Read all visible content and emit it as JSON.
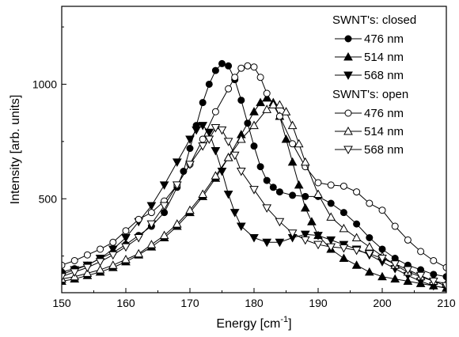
{
  "chart_data": {
    "type": "line",
    "xlabel": "Energy [cm",
    "xlabel_sup": "-1",
    "xlabel_end": "]",
    "ylabel": "Intensity [arb. units]",
    "xlim": [
      150,
      210
    ],
    "ylim": [
      90,
      1340
    ],
    "x_ticks": [
      150,
      160,
      170,
      180,
      190,
      200,
      210
    ],
    "y_ticks": [
      500,
      1000
    ],
    "legend_position": "top-right",
    "legend_groups": [
      {
        "heading": "SWNT's: closed",
        "series_indices": [
          0,
          1,
          2
        ]
      },
      {
        "heading": "SWNT's: open",
        "series_indices": [
          3,
          4,
          5
        ]
      }
    ],
    "series": [
      {
        "name": "476 nm",
        "marker": "circle",
        "filled": true,
        "points": [
          [
            150,
            180
          ],
          [
            152,
            195
          ],
          [
            154,
            210
          ],
          [
            156,
            240
          ],
          [
            158,
            265
          ],
          [
            160,
            300
          ],
          [
            162,
            340
          ],
          [
            164,
            380
          ],
          [
            166,
            440
          ],
          [
            168,
            550
          ],
          [
            169,
            620
          ],
          [
            170,
            720
          ],
          [
            171,
            820
          ],
          [
            172,
            920
          ],
          [
            173,
            1000
          ],
          [
            174,
            1060
          ],
          [
            175,
            1090
          ],
          [
            176,
            1080
          ],
          [
            177,
            1020
          ],
          [
            178,
            930
          ],
          [
            179,
            830
          ],
          [
            180,
            730
          ],
          [
            181,
            640
          ],
          [
            182,
            580
          ],
          [
            183,
            550
          ],
          [
            184,
            530
          ],
          [
            186,
            515
          ],
          [
            188,
            510
          ],
          [
            190,
            510
          ],
          [
            192,
            480
          ],
          [
            194,
            440
          ],
          [
            196,
            390
          ],
          [
            198,
            330
          ],
          [
            200,
            280
          ],
          [
            202,
            240
          ],
          [
            204,
            210
          ],
          [
            206,
            190
          ],
          [
            208,
            170
          ],
          [
            210,
            160
          ]
        ]
      },
      {
        "name": "514 nm",
        "marker": "triangle-up",
        "filled": true,
        "points": [
          [
            150,
            140
          ],
          [
            152,
            150
          ],
          [
            154,
            165
          ],
          [
            156,
            180
          ],
          [
            158,
            200
          ],
          [
            160,
            225
          ],
          [
            162,
            255
          ],
          [
            164,
            290
          ],
          [
            166,
            330
          ],
          [
            168,
            380
          ],
          [
            170,
            440
          ],
          [
            172,
            510
          ],
          [
            174,
            590
          ],
          [
            176,
            680
          ],
          [
            178,
            780
          ],
          [
            180,
            880
          ],
          [
            181,
            920
          ],
          [
            182,
            940
          ],
          [
            183,
            920
          ],
          [
            184,
            860
          ],
          [
            185,
            760
          ],
          [
            186,
            660
          ],
          [
            187,
            560
          ],
          [
            188,
            460
          ],
          [
            189,
            400
          ],
          [
            190,
            340
          ],
          [
            192,
            280
          ],
          [
            194,
            240
          ],
          [
            196,
            210
          ],
          [
            198,
            180
          ],
          [
            200,
            160
          ],
          [
            202,
            150
          ],
          [
            204,
            140
          ],
          [
            206,
            130
          ],
          [
            208,
            120
          ],
          [
            210,
            110
          ]
        ]
      },
      {
        "name": "568 nm",
        "marker": "triangle-down",
        "filled": true,
        "points": [
          [
            150,
            170
          ],
          [
            152,
            190
          ],
          [
            154,
            210
          ],
          [
            156,
            240
          ],
          [
            158,
            280
          ],
          [
            160,
            330
          ],
          [
            162,
            400
          ],
          [
            164,
            470
          ],
          [
            166,
            560
          ],
          [
            168,
            660
          ],
          [
            170,
            760
          ],
          [
            171,
            800
          ],
          [
            172,
            820
          ],
          [
            173,
            790
          ],
          [
            174,
            710
          ],
          [
            175,
            620
          ],
          [
            176,
            520
          ],
          [
            177,
            440
          ],
          [
            178,
            380
          ],
          [
            180,
            330
          ],
          [
            182,
            310
          ],
          [
            184,
            310
          ],
          [
            186,
            330
          ],
          [
            188,
            345
          ],
          [
            190,
            340
          ],
          [
            192,
            320
          ],
          [
            194,
            300
          ],
          [
            196,
            280
          ],
          [
            198,
            255
          ],
          [
            200,
            225
          ],
          [
            202,
            195
          ],
          [
            204,
            165
          ],
          [
            206,
            140
          ],
          [
            208,
            120
          ],
          [
            210,
            110
          ]
        ]
      },
      {
        "name": "476 nm",
        "marker": "circle",
        "filled": false,
        "points": [
          [
            150,
            210
          ],
          [
            152,
            230
          ],
          [
            154,
            255
          ],
          [
            156,
            280
          ],
          [
            158,
            310
          ],
          [
            160,
            360
          ],
          [
            162,
            410
          ],
          [
            164,
            440
          ],
          [
            166,
            490
          ],
          [
            168,
            560
          ],
          [
            170,
            650
          ],
          [
            172,
            760
          ],
          [
            174,
            880
          ],
          [
            176,
            980
          ],
          [
            177,
            1030
          ],
          [
            178,
            1070
          ],
          [
            179,
            1080
          ],
          [
            180,
            1075
          ],
          [
            181,
            1030
          ],
          [
            182,
            960
          ],
          [
            184,
            860
          ],
          [
            186,
            740
          ],
          [
            188,
            640
          ],
          [
            190,
            570
          ],
          [
            192,
            560
          ],
          [
            194,
            555
          ],
          [
            196,
            530
          ],
          [
            198,
            480
          ],
          [
            200,
            450
          ],
          [
            202,
            380
          ],
          [
            204,
            320
          ],
          [
            206,
            270
          ],
          [
            208,
            230
          ],
          [
            210,
            200
          ]
        ]
      },
      {
        "name": "514 nm",
        "marker": "triangle-up",
        "filled": false,
        "points": [
          [
            150,
            150
          ],
          [
            152,
            160
          ],
          [
            154,
            175
          ],
          [
            156,
            190
          ],
          [
            158,
            210
          ],
          [
            160,
            235
          ],
          [
            162,
            260
          ],
          [
            164,
            300
          ],
          [
            166,
            340
          ],
          [
            168,
            390
          ],
          [
            170,
            450
          ],
          [
            172,
            520
          ],
          [
            174,
            600
          ],
          [
            176,
            680
          ],
          [
            178,
            760
          ],
          [
            180,
            820
          ],
          [
            182,
            890
          ],
          [
            183,
            910
          ],
          [
            184,
            910
          ],
          [
            185,
            880
          ],
          [
            186,
            820
          ],
          [
            187,
            740
          ],
          [
            188,
            660
          ],
          [
            190,
            520
          ],
          [
            192,
            420
          ],
          [
            194,
            370
          ],
          [
            196,
            330
          ],
          [
            198,
            290
          ],
          [
            200,
            250
          ],
          [
            202,
            210
          ],
          [
            204,
            180
          ],
          [
            206,
            160
          ],
          [
            208,
            140
          ],
          [
            210,
            130
          ]
        ]
      },
      {
        "name": "568 nm",
        "marker": "triangle-down",
        "filled": false,
        "points": [
          [
            150,
            160
          ],
          [
            152,
            180
          ],
          [
            154,
            200
          ],
          [
            156,
            225
          ],
          [
            158,
            255
          ],
          [
            160,
            290
          ],
          [
            162,
            330
          ],
          [
            164,
            390
          ],
          [
            166,
            470
          ],
          [
            168,
            560
          ],
          [
            170,
            650
          ],
          [
            172,
            730
          ],
          [
            173,
            760
          ],
          [
            174,
            810
          ],
          [
            175,
            800
          ],
          [
            176,
            750
          ],
          [
            177,
            690
          ],
          [
            178,
            620
          ],
          [
            180,
            540
          ],
          [
            182,
            460
          ],
          [
            184,
            400
          ],
          [
            186,
            350
          ],
          [
            188,
            320
          ],
          [
            190,
            300
          ],
          [
            192,
            290
          ],
          [
            194,
            285
          ],
          [
            196,
            275
          ],
          [
            198,
            260
          ],
          [
            200,
            240
          ],
          [
            202,
            215
          ],
          [
            204,
            190
          ],
          [
            206,
            165
          ],
          [
            208,
            140
          ],
          [
            210,
            120
          ]
        ]
      }
    ]
  }
}
